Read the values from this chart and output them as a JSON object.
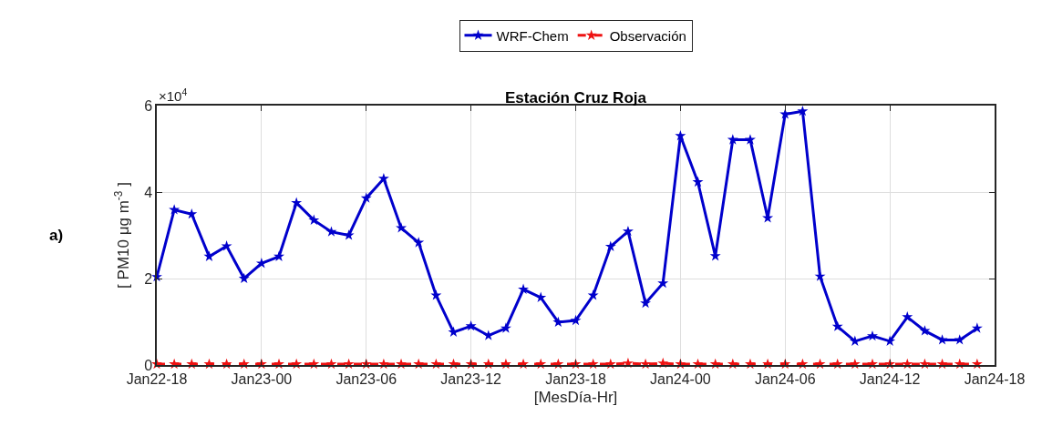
{
  "chart_data": {
    "type": "line",
    "title": "Estación Cruz Roja",
    "xlabel": "[MesDía-Hr]",
    "ylabel": "[ PM10 μg m$^{-3}$ ]",
    "annotations": [
      "×10$^{4}$",
      "a)"
    ],
    "categories": [
      "Jan22-18",
      null,
      null,
      null,
      null,
      null,
      "Jan23-00",
      null,
      null,
      null,
      null,
      null,
      "Jan23-06",
      null,
      null,
      null,
      null,
      null,
      "Jan23-12",
      null,
      null,
      null,
      null,
      null,
      "Jan23-18",
      null,
      null,
      null,
      null,
      null,
      "Jan24-00",
      null,
      null,
      null,
      null,
      null,
      "Jan24-06",
      null,
      null,
      null,
      null,
      null,
      "Jan24-12",
      null,
      null,
      null,
      null,
      null,
      "Jan24-18"
    ],
    "series": [
      {
        "name": "WRF-Chem",
        "color": "#0000cc",
        "line_style": "solid",
        "values": [
          2.04,
          3.59,
          3.49,
          2.51,
          2.75,
          2.0,
          2.35,
          2.51,
          3.75,
          3.35,
          3.08,
          3.0,
          3.86,
          4.31,
          3.17,
          2.83,
          1.61,
          0.76,
          0.9,
          0.68,
          0.85,
          1.75,
          1.56,
          0.99,
          1.03,
          1.61,
          2.74,
          3.09,
          1.43,
          1.89,
          5.3,
          4.23,
          2.52,
          5.21,
          5.21,
          3.4,
          5.8,
          5.87,
          2.05,
          0.89,
          0.55,
          0.67,
          0.55,
          1.11,
          0.79,
          0.58,
          0.58,
          0.85,
          null
        ]
      },
      {
        "name": "Observación",
        "color": "#ee1111",
        "line_style": "dashed",
        "values": [
          0.02,
          0.02,
          0.02,
          0.02,
          0.02,
          0.02,
          0.02,
          0.02,
          0.02,
          0.02,
          0.02,
          0.02,
          0.02,
          0.02,
          0.02,
          0.02,
          0.02,
          0.02,
          0.02,
          0.02,
          0.02,
          0.02,
          0.02,
          0.02,
          0.02,
          0.02,
          0.02,
          0.04,
          0.02,
          0.04,
          0.02,
          0.02,
          0.02,
          0.02,
          0.02,
          0.02,
          0.02,
          0.02,
          0.02,
          0.02,
          0.02,
          0.02,
          0.02,
          0.02,
          0.02,
          0.02,
          0.02,
          0.02,
          null
        ]
      }
    ],
    "ylim": [
      0,
      6
    ],
    "yticks": [
      0,
      2,
      4,
      6
    ],
    "grid": true,
    "legend": "top",
    "marker": "star"
  }
}
